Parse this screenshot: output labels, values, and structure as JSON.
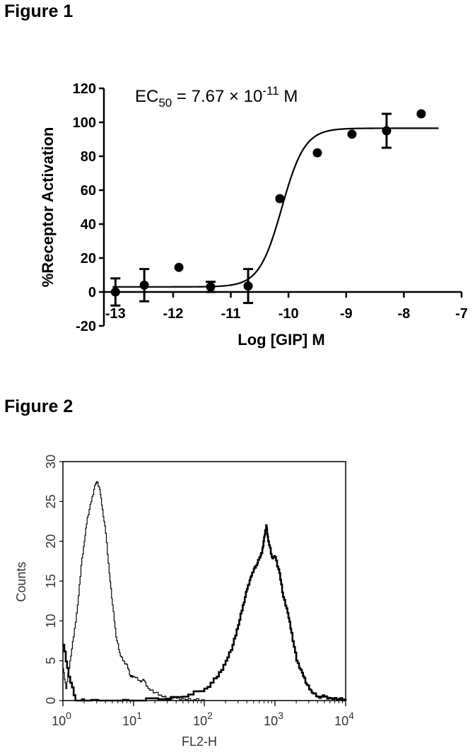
{
  "figures": {
    "fig1_title": "Figure 1",
    "fig2_title": "Figure 2"
  },
  "chart_data": [
    {
      "type": "scatter",
      "title": "",
      "annotation": {
        "prefix": "EC",
        "subscript": "50",
        "text": " = 7.67 × 10",
        "superscript": "-11",
        "suffix": " M"
      },
      "xlabel": "Log [GIP] M",
      "ylabel": "%Receptor Activation",
      "xlim": [
        -13.2,
        -7
      ],
      "ylim": [
        -20,
        120
      ],
      "x_ticks": [
        "-13",
        "-12",
        "-11",
        "-10",
        "-9",
        "-8",
        "-7"
      ],
      "y_ticks": [
        "-20",
        "0",
        "20",
        "40",
        "60",
        "80",
        "100",
        "120"
      ],
      "points": [
        {
          "x": -13.0,
          "y": 0,
          "err": 8
        },
        {
          "x": -12.5,
          "y": 4,
          "err": 9.5
        },
        {
          "x": -11.9,
          "y": 14.5,
          "err": 0
        },
        {
          "x": -11.35,
          "y": 3,
          "err": 3
        },
        {
          "x": -10.7,
          "y": 3.5,
          "err": 10
        },
        {
          "x": -10.15,
          "y": 55,
          "err": 0
        },
        {
          "x": -9.5,
          "y": 82,
          "err": 0
        },
        {
          "x": -8.9,
          "y": 93,
          "err": 0
        },
        {
          "x": -8.3,
          "y": 95,
          "err": 10
        },
        {
          "x": -7.7,
          "y": 105,
          "err": 0
        }
      ],
      "fit": {
        "bottom": 3,
        "top": 96.5,
        "logEC50": -10.115,
        "hill": 2.2
      },
      "grid": false,
      "legend": "none"
    },
    {
      "type": "line",
      "title": "",
      "xlabel": "FL2-H",
      "ylabel": "Counts",
      "x_scale": "log",
      "xlim": [
        1,
        10000
      ],
      "ylim": [
        0,
        30
      ],
      "x_ticks": [
        {
          "base": "10",
          "exp": "0"
        },
        {
          "base": "10",
          "exp": "1"
        },
        {
          "base": "10",
          "exp": "2"
        },
        {
          "base": "10",
          "exp": "3"
        },
        {
          "base": "10",
          "exp": "4"
        }
      ],
      "y_ticks": [
        "0",
        "5",
        "10",
        "15",
        "20",
        "25",
        "30"
      ],
      "series": [
        {
          "style": "thin",
          "x": [
            1,
            1.1,
            1.25,
            1.4,
            1.6,
            1.8,
            2.0,
            2.2,
            2.5,
            2.8,
            3.0,
            3.3,
            3.6,
            4.0,
            4.5,
            5.0,
            5.6,
            6.3,
            7.0,
            8.0,
            9.0,
            10,
            12,
            14,
            16,
            20,
            25,
            30,
            40,
            50,
            70,
            100
          ],
          "y": [
            4,
            1.5,
            5,
            8,
            12,
            17,
            20,
            23,
            25,
            27,
            27.5,
            26.5,
            24,
            21,
            16,
            12,
            8,
            6,
            5,
            4.5,
            3,
            3,
            2.5,
            2.5,
            1.5,
            1,
            0.5,
            0.3,
            0.3,
            0.2,
            0.1,
            0
          ]
        },
        {
          "style": "thick",
          "x": [
            1,
            1.2,
            1.5,
            2,
            5,
            10,
            50,
            100,
            150,
            200,
            250,
            300,
            350,
            400,
            450,
            500,
            550,
            600,
            650,
            700,
            750,
            800,
            900,
            1000,
            1150,
            1300,
            1500,
            1700,
            2000,
            2400,
            2800,
            3300,
            4000,
            5000,
            6000,
            8000,
            10000
          ],
          "y": [
            7,
            3,
            0,
            0,
            0,
            0,
            0.5,
            1.5,
            3,
            5,
            7,
            9.5,
            12,
            14,
            15.5,
            16.5,
            17,
            18,
            18.5,
            20.5,
            22,
            20,
            18,
            18,
            16,
            13,
            11,
            8.5,
            5,
            3.5,
            2,
            1,
            0.5,
            0.5,
            0.3,
            0.2,
            0
          ]
        }
      ],
      "grid": false,
      "legend": "none"
    }
  ]
}
